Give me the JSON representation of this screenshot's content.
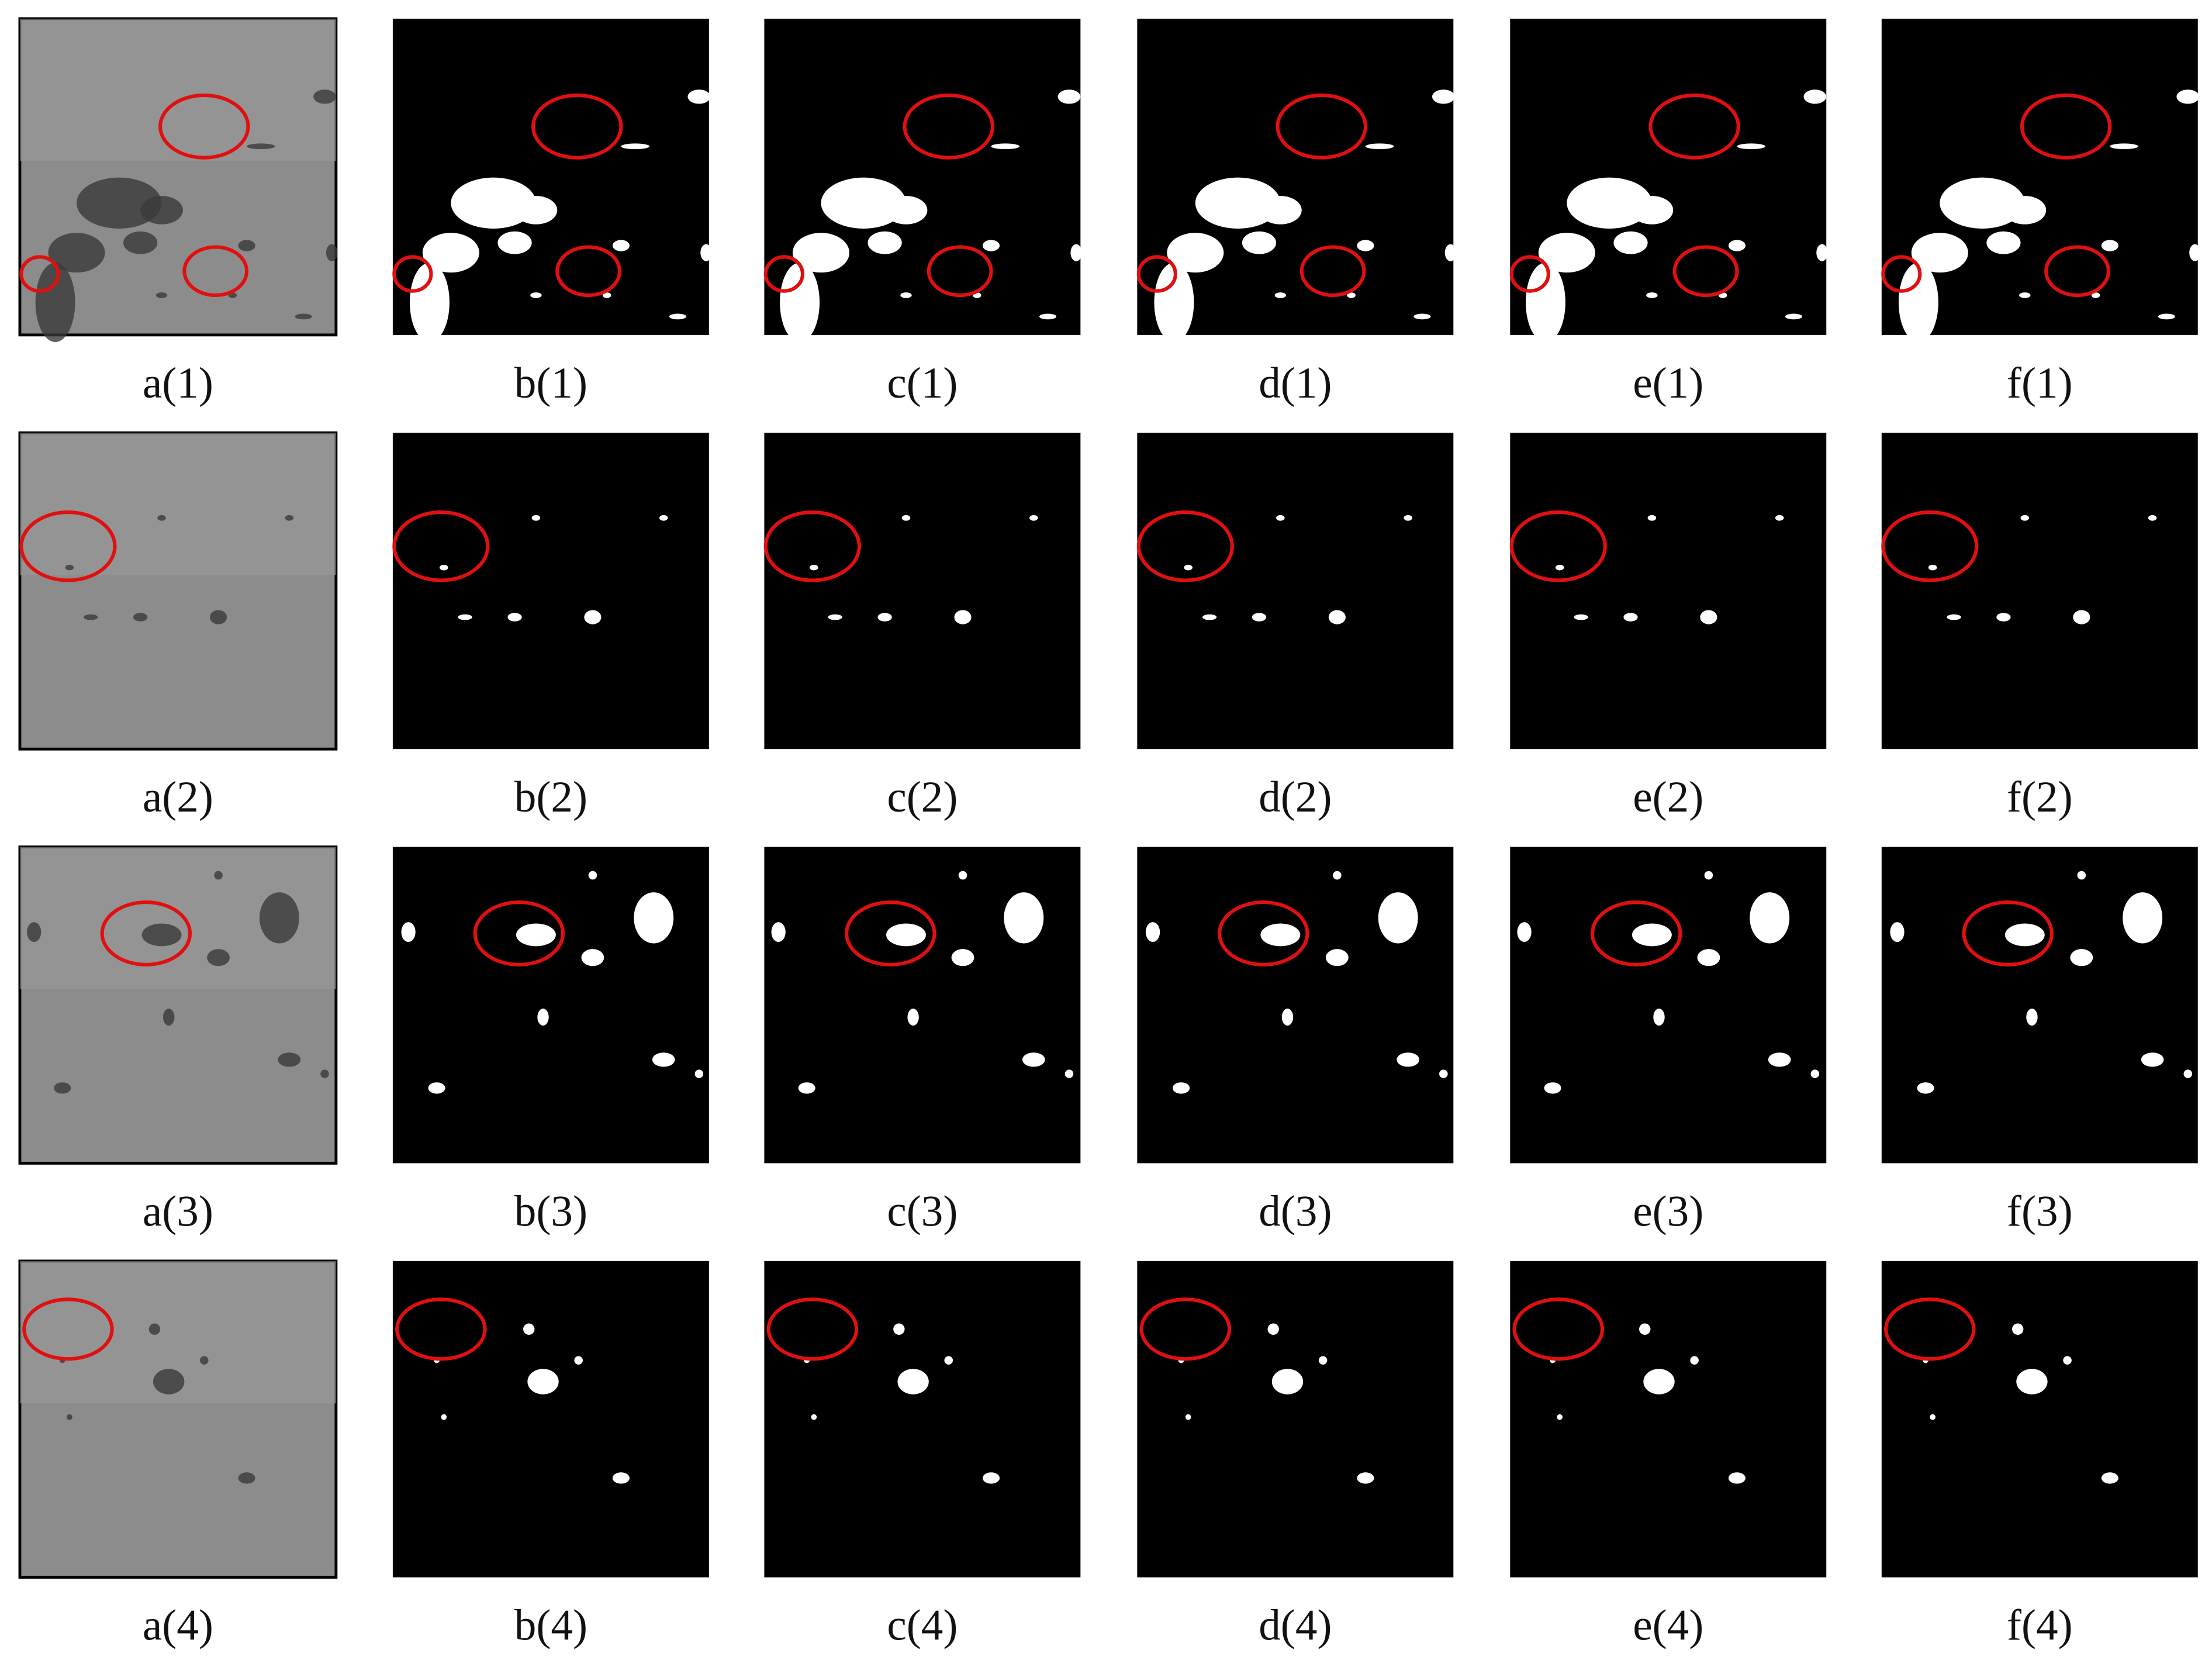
{
  "rows": [
    [
      "a(1)",
      "b(1)",
      "c(1)",
      "d(1)",
      "e(1)",
      "f(1)"
    ],
    [
      "a(2)",
      "b(2)",
      "c(2)",
      "d(2)",
      "e(2)",
      "f(2)"
    ],
    [
      "a(3)",
      "b(3)",
      "c(3)",
      "d(3)",
      "e(3)",
      "f(3)"
    ],
    [
      "a(4)",
      "b(4)",
      "c(4)",
      "d(4)",
      "e(4)",
      "f(4)"
    ]
  ]
}
